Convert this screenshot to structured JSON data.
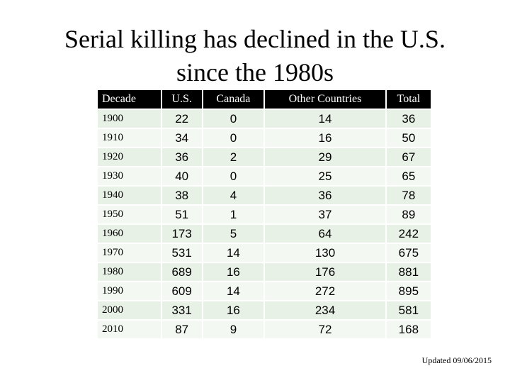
{
  "slide": {
    "title_line1": "Serial killing has declined in the U.S.",
    "title_line2": "since the 1980s",
    "updated_note": "Updated 09/06/2015"
  },
  "table": {
    "headers": [
      "Decade",
      "U.S.",
      "Canada",
      "Other Countries",
      "Total"
    ],
    "rows": [
      [
        "1900",
        "22",
        "0",
        "14",
        "36"
      ],
      [
        "1910",
        "34",
        "0",
        "16",
        "50"
      ],
      [
        "1920",
        "36",
        "2",
        "29",
        "67"
      ],
      [
        "1930",
        "40",
        "0",
        "25",
        "65"
      ],
      [
        "1940",
        "38",
        "4",
        "36",
        "78"
      ],
      [
        "1950",
        "51",
        "1",
        "37",
        "89"
      ],
      [
        "1960",
        "173",
        "5",
        "64",
        "242"
      ],
      [
        "1970",
        "531",
        "14",
        "130",
        "675"
      ],
      [
        "1980",
        "689",
        "16",
        "176",
        "881"
      ],
      [
        "1990",
        "609",
        "14",
        "272",
        "895"
      ],
      [
        "2000",
        "331",
        "16",
        "234",
        "581"
      ],
      [
        "2010",
        "87",
        "9",
        "72",
        "168"
      ]
    ]
  },
  "colors": {
    "header_bg": "#000000",
    "header_text": "#ffffff",
    "row_bg": "#e8f1e6",
    "row_alt_bg": "#f3f8f2"
  }
}
